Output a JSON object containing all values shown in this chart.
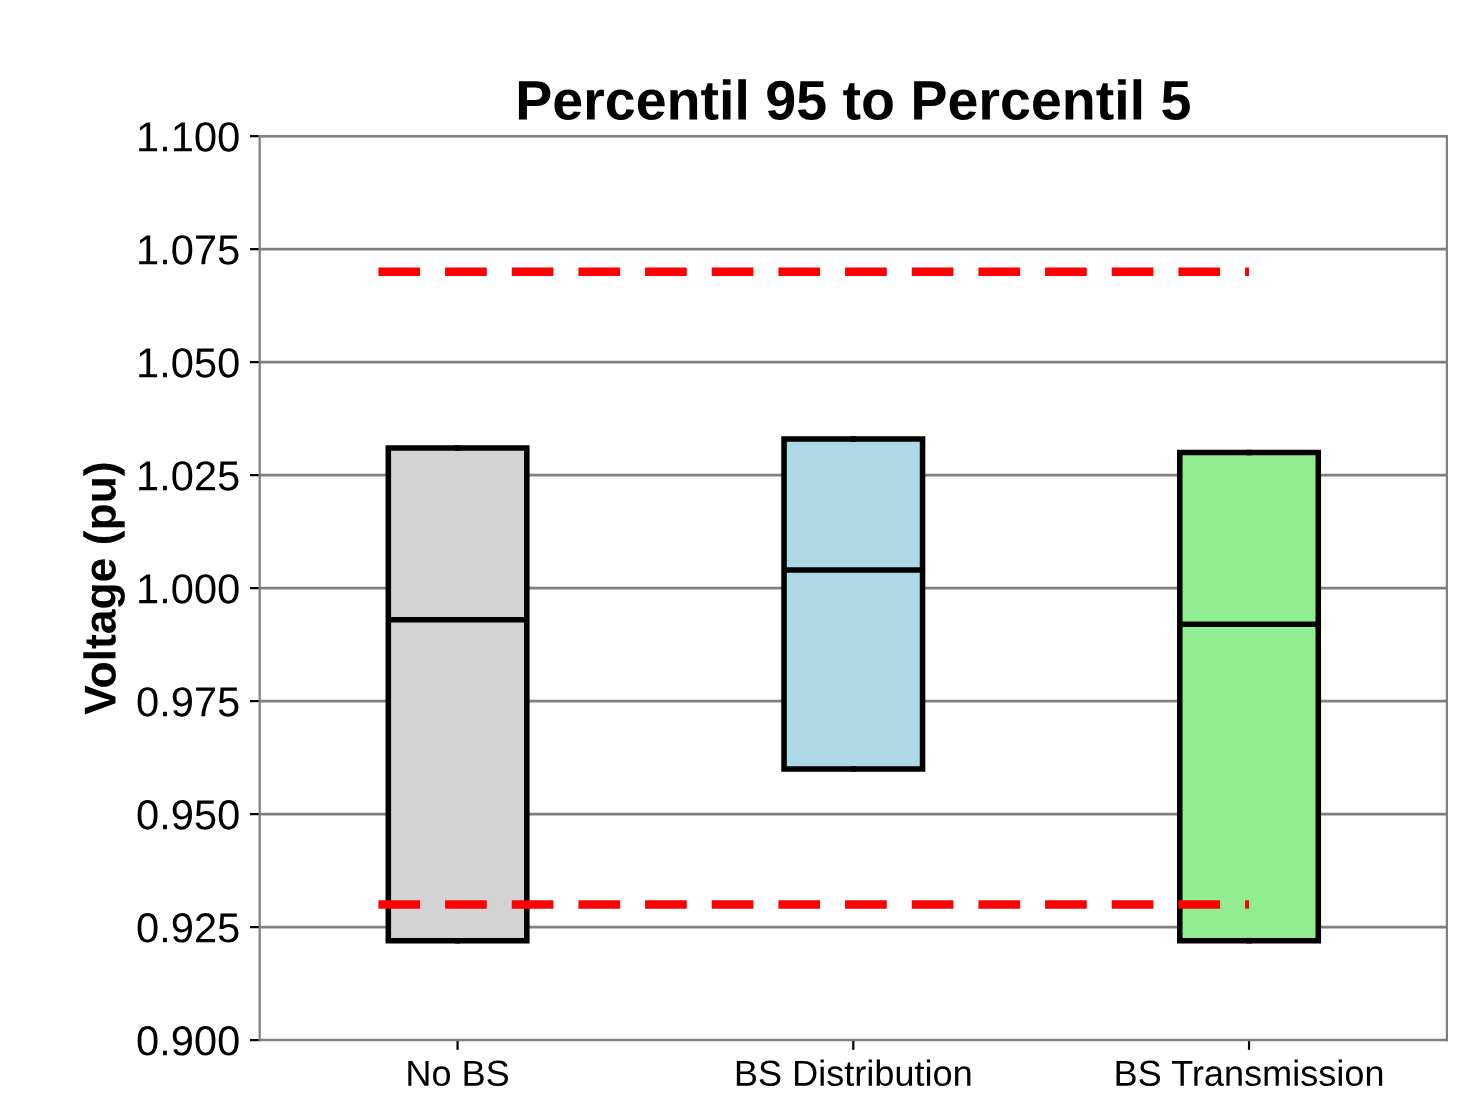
{
  "chart_data": {
    "type": "box",
    "title": "Percentil 95 to Percentil 5",
    "ylabel": "Voltage (pu)",
    "categories": [
      "No BS",
      "BS Distribution",
      "BS Transmission"
    ],
    "boxes": [
      {
        "low": 0.922,
        "q1": 0.922,
        "median": 0.993,
        "q3": 1.031,
        "high": 1.031
      },
      {
        "low": 0.96,
        "q1": 0.96,
        "median": 1.004,
        "q3": 1.033,
        "high": 1.033
      },
      {
        "low": 0.922,
        "q1": 0.922,
        "median": 0.992,
        "q3": 1.03,
        "high": 1.03
      }
    ],
    "colors": [
      "#d3d3d3",
      "#add8e6",
      "#90ee90"
    ],
    "ylim": [
      0.9,
      1.1
    ],
    "yticks": [
      {
        "value": 0.9,
        "label": "0.900"
      },
      {
        "value": 0.925,
        "label": "0.925"
      },
      {
        "value": 0.95,
        "label": "0.950"
      },
      {
        "value": 0.975,
        "label": "0.975"
      },
      {
        "value": 1.0,
        "label": "1.000"
      },
      {
        "value": 1.025,
        "label": "1.025"
      },
      {
        "value": 1.05,
        "label": "1.050"
      },
      {
        "value": 1.075,
        "label": "1.075"
      },
      {
        "value": 1.1,
        "label": "1.100"
      }
    ],
    "grid": "y",
    "ref_lines": [
      {
        "axis": "y",
        "value": 0.93,
        "color": "#ff0000",
        "line_style": "dashed"
      },
      {
        "axis": "y",
        "value": 1.07,
        "color": "#ff0000",
        "line_style": "dashed"
      }
    ]
  }
}
